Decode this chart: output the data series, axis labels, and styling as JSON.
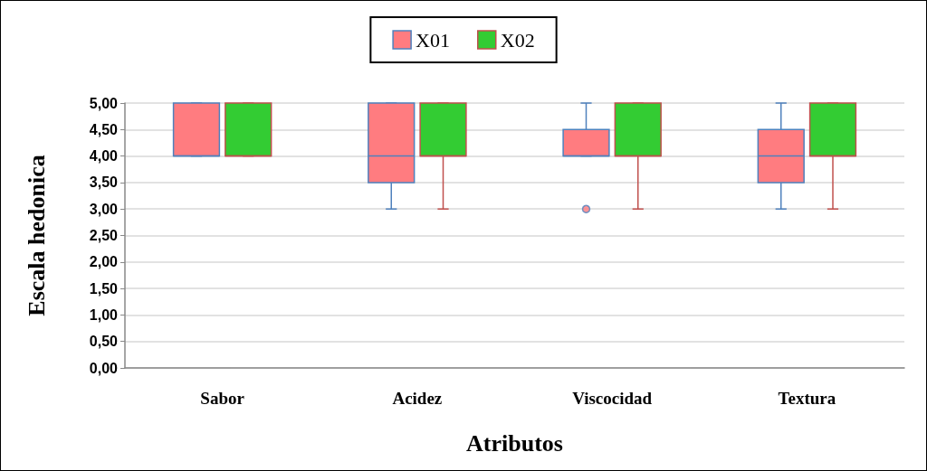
{
  "chart_data": {
    "type": "box",
    "categories": [
      "Sabor",
      "Acidez",
      "Viscocidad",
      "Textura"
    ],
    "xlabel": "Atributos",
    "ylabel": "Escala hedonica",
    "ylim": [
      0,
      5
    ],
    "yticks": [
      {
        "value": 0,
        "label": "0,00"
      },
      {
        "value": 0.5,
        "label": "0,50"
      },
      {
        "value": 1,
        "label": "1,00"
      },
      {
        "value": 1.5,
        "label": "1,50"
      },
      {
        "value": 2,
        "label": "2,00"
      },
      {
        "value": 2.5,
        "label": "2,50"
      },
      {
        "value": 3,
        "label": "3,00"
      },
      {
        "value": 3.5,
        "label": "3,50"
      },
      {
        "value": 4,
        "label": "4,00"
      },
      {
        "value": 4.5,
        "label": "4,50"
      },
      {
        "value": 5,
        "label": "5,00"
      }
    ],
    "grid": "y",
    "legend": "top",
    "series": [
      {
        "name": "X01",
        "color": "#ff7c80",
        "boxes": [
          {
            "low": 4,
            "q1": 4,
            "median": 4,
            "q3": 5,
            "high": 5
          },
          {
            "low": 3,
            "q1": 3.5,
            "median": 4,
            "q3": 5,
            "high": 5
          },
          {
            "low": 4,
            "q1": 4,
            "median": 4,
            "q3": 4.5,
            "high": 5,
            "outliers": [
              3
            ]
          },
          {
            "low": 3,
            "q1": 3.5,
            "median": 4,
            "q3": 4.5,
            "high": 5
          }
        ]
      },
      {
        "name": "X02",
        "color": "#33cc33",
        "boxes": [
          {
            "low": 4,
            "q1": 4,
            "median": 4,
            "q3": 5,
            "high": 5
          },
          {
            "low": 3,
            "q1": 4,
            "median": 4,
            "q3": 5,
            "high": 5
          },
          {
            "low": 3,
            "q1": 4,
            "median": 4,
            "q3": 5,
            "high": 5
          },
          {
            "low": 3,
            "q1": 4,
            "median": 4,
            "q3": 5,
            "high": 5
          }
        ]
      }
    ]
  }
}
